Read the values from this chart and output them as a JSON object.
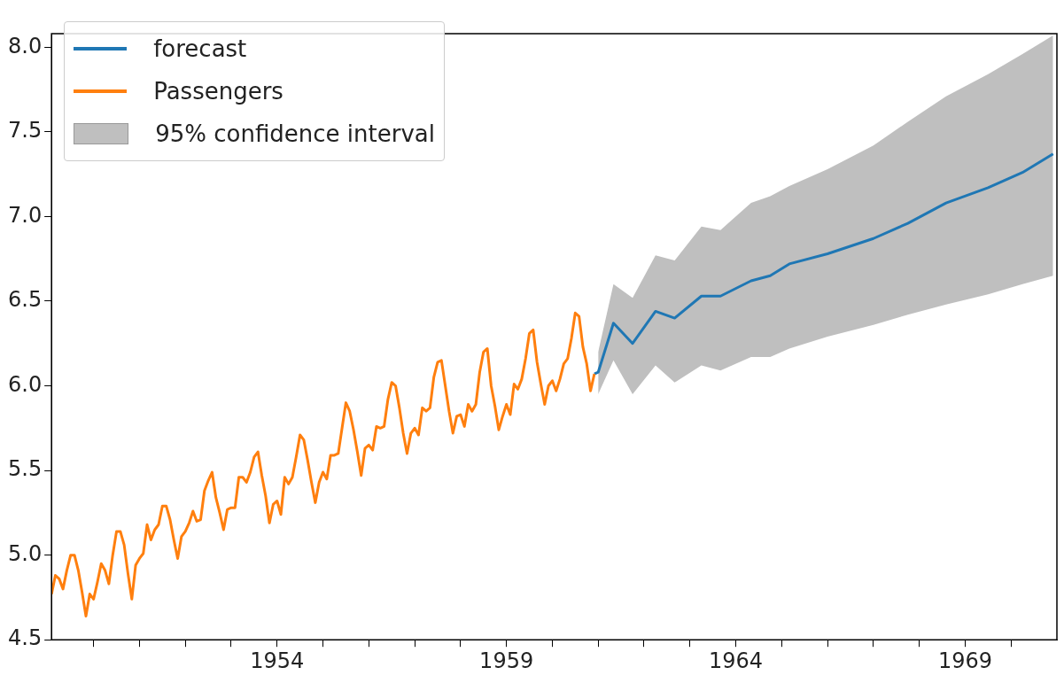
{
  "chart_data": {
    "type": "line",
    "legend": "top left",
    "grid": false,
    "marker": "none",
    "x": [
      "1949-02",
      "1949-03",
      "1949-04",
      "1949-05",
      "1949-06",
      "1949-07",
      "1949-08",
      "1949-09",
      "1949-10",
      "1949-11",
      "1949-12",
      "1950-01",
      "1950-02",
      "1950-03",
      "1950-04",
      "1950-05",
      "1950-06",
      "1950-07",
      "1950-08",
      "1950-09",
      "1950-10",
      "1950-11",
      "1950-12",
      "1951-01",
      "1951-02",
      "1951-03",
      "1951-04",
      "1951-05",
      "1951-06",
      "1951-07",
      "1951-08",
      "1951-09",
      "1951-10",
      "1951-11",
      "1951-12",
      "1952-01",
      "1952-02",
      "1952-03",
      "1952-04",
      "1952-05",
      "1952-06",
      "1952-07",
      "1952-08",
      "1952-09",
      "1952-10",
      "1952-11",
      "1952-12",
      "1953-01",
      "1953-02",
      "1953-03",
      "1953-04",
      "1953-05",
      "1953-06",
      "1953-07",
      "1953-08",
      "1953-09",
      "1953-10",
      "1953-11",
      "1953-12",
      "1954-01",
      "1954-02",
      "1954-03",
      "1954-04",
      "1954-05",
      "1954-06",
      "1954-07",
      "1954-08",
      "1954-09",
      "1954-10",
      "1954-11",
      "1954-12",
      "1955-01",
      "1955-02",
      "1955-03",
      "1955-04",
      "1955-05",
      "1955-06",
      "1955-07",
      "1955-08",
      "1955-09",
      "1955-10",
      "1955-11",
      "1955-12",
      "1956-01",
      "1956-02",
      "1956-03",
      "1956-04",
      "1956-05",
      "1956-06",
      "1956-07",
      "1956-08",
      "1956-09",
      "1956-10",
      "1956-11",
      "1956-12",
      "1957-01",
      "1957-02",
      "1957-03",
      "1957-04",
      "1957-05",
      "1957-06",
      "1957-07",
      "1957-08",
      "1957-09",
      "1957-10",
      "1957-11",
      "1957-12",
      "1958-01",
      "1958-02",
      "1958-03",
      "1958-04",
      "1958-05",
      "1958-06",
      "1958-07",
      "1958-08",
      "1958-09",
      "1958-10",
      "1958-11",
      "1958-12",
      "1959-01",
      "1959-02",
      "1959-03",
      "1959-04",
      "1959-05",
      "1959-06",
      "1959-07",
      "1959-08",
      "1959-09",
      "1959-10",
      "1959-11",
      "1959-12",
      "1960-01",
      "1960-02",
      "1960-03",
      "1960-04",
      "1960-05",
      "1960-06",
      "1960-07",
      "1960-08",
      "1960-09",
      "1960-10",
      "1960-11",
      "1960-12",
      "1961-01",
      "1961-05",
      "1961-10",
      "1962-04",
      "1962-09",
      "1963-04",
      "1963-09",
      "1964-05",
      "1964-10",
      "1965-03",
      "1966-01",
      "1967-01",
      "1967-10",
      "1968-08",
      "1969-07",
      "1970-04",
      "1970-12"
    ],
    "series": [
      {
        "name": "forecast",
        "color": "#1f77b4",
        "values": [
          null,
          null,
          null,
          null,
          null,
          null,
          null,
          null,
          null,
          null,
          null,
          null,
          null,
          null,
          null,
          null,
          null,
          null,
          null,
          null,
          null,
          null,
          null,
          null,
          null,
          null,
          null,
          null,
          null,
          null,
          null,
          null,
          null,
          null,
          null,
          null,
          null,
          null,
          null,
          null,
          null,
          null,
          null,
          null,
          null,
          null,
          null,
          null,
          null,
          null,
          null,
          null,
          null,
          null,
          null,
          null,
          null,
          null,
          null,
          null,
          null,
          null,
          null,
          null,
          null,
          null,
          null,
          null,
          null,
          null,
          null,
          null,
          null,
          null,
          null,
          null,
          null,
          null,
          null,
          null,
          null,
          null,
          null,
          null,
          null,
          null,
          null,
          null,
          null,
          null,
          null,
          null,
          null,
          null,
          null,
          null,
          null,
          null,
          null,
          null,
          null,
          null,
          null,
          null,
          null,
          null,
          null,
          null,
          null,
          null,
          null,
          null,
          null,
          null,
          null,
          null,
          null,
          null,
          null,
          null,
          null,
          null,
          null,
          null,
          null,
          null,
          null,
          null,
          null,
          null,
          null,
          null,
          null,
          null,
          null,
          null,
          null,
          null,
          null,
          null,
          null,
          null,
          6.07,
          6.08,
          6.37,
          6.25,
          6.44,
          6.4,
          6.53,
          6.53,
          6.62,
          6.65,
          6.72,
          6.78,
          6.87,
          6.96,
          7.08,
          7.17,
          7.26,
          7.37
        ],
        "lower": [
          null,
          null,
          null,
          null,
          null,
          null,
          null,
          null,
          null,
          null,
          null,
          null,
          null,
          null,
          null,
          null,
          null,
          null,
          null,
          null,
          null,
          null,
          null,
          null,
          null,
          null,
          null,
          null,
          null,
          null,
          null,
          null,
          null,
          null,
          null,
          null,
          null,
          null,
          null,
          null,
          null,
          null,
          null,
          null,
          null,
          null,
          null,
          null,
          null,
          null,
          null,
          null,
          null,
          null,
          null,
          null,
          null,
          null,
          null,
          null,
          null,
          null,
          null,
          null,
          null,
          null,
          null,
          null,
          null,
          null,
          null,
          null,
          null,
          null,
          null,
          null,
          null,
          null,
          null,
          null,
          null,
          null,
          null,
          null,
          null,
          null,
          null,
          null,
          null,
          null,
          null,
          null,
          null,
          null,
          null,
          null,
          null,
          null,
          null,
          null,
          null,
          null,
          null,
          null,
          null,
          null,
          null,
          null,
          null,
          null,
          null,
          null,
          null,
          null,
          null,
          null,
          null,
          null,
          null,
          null,
          null,
          null,
          null,
          null,
          null,
          null,
          null,
          null,
          null,
          null,
          null,
          null,
          null,
          null,
          null,
          null,
          null,
          null,
          null,
          null,
          null,
          null,
          null,
          5.95,
          6.15,
          5.95,
          6.12,
          6.02,
          6.12,
          6.09,
          6.17,
          6.17,
          6.22,
          6.29,
          6.36,
          6.42,
          6.48,
          6.54,
          6.6,
          6.65
        ],
        "upper": [
          null,
          null,
          null,
          null,
          null,
          null,
          null,
          null,
          null,
          null,
          null,
          null,
          null,
          null,
          null,
          null,
          null,
          null,
          null,
          null,
          null,
          null,
          null,
          null,
          null,
          null,
          null,
          null,
          null,
          null,
          null,
          null,
          null,
          null,
          null,
          null,
          null,
          null,
          null,
          null,
          null,
          null,
          null,
          null,
          null,
          null,
          null,
          null,
          null,
          null,
          null,
          null,
          null,
          null,
          null,
          null,
          null,
          null,
          null,
          null,
          null,
          null,
          null,
          null,
          null,
          null,
          null,
          null,
          null,
          null,
          null,
          null,
          null,
          null,
          null,
          null,
          null,
          null,
          null,
          null,
          null,
          null,
          null,
          null,
          null,
          null,
          null,
          null,
          null,
          null,
          null,
          null,
          null,
          null,
          null,
          null,
          null,
          null,
          null,
          null,
          null,
          null,
          null,
          null,
          null,
          null,
          null,
          null,
          null,
          null,
          null,
          null,
          null,
          null,
          null,
          null,
          null,
          null,
          null,
          null,
          null,
          null,
          null,
          null,
          null,
          null,
          null,
          null,
          null,
          null,
          null,
          null,
          null,
          null,
          null,
          null,
          null,
          null,
          null,
          null,
          null,
          null,
          null,
          6.2,
          6.6,
          6.52,
          6.77,
          6.74,
          6.94,
          6.92,
          7.08,
          7.12,
          7.18,
          7.28,
          7.42,
          7.56,
          7.71,
          7.84,
          7.96,
          8.07
        ]
      },
      {
        "name": "Passengers",
        "color": "#ff7f0e",
        "values": [
          4.77,
          4.88,
          4.86,
          4.8,
          4.91,
          5.0,
          5.0,
          4.91,
          4.78,
          4.64,
          4.77,
          4.74,
          4.84,
          4.95,
          4.91,
          4.83,
          5.0,
          5.14,
          5.14,
          5.06,
          4.89,
          4.74,
          4.94,
          4.98,
          5.01,
          5.18,
          5.09,
          5.15,
          5.18,
          5.29,
          5.29,
          5.21,
          5.09,
          4.98,
          5.11,
          5.14,
          5.19,
          5.26,
          5.2,
          5.21,
          5.38,
          5.44,
          5.49,
          5.34,
          5.25,
          5.15,
          5.27,
          5.28,
          5.28,
          5.46,
          5.46,
          5.43,
          5.49,
          5.58,
          5.61,
          5.47,
          5.35,
          5.19,
          5.3,
          5.32,
          5.24,
          5.46,
          5.42,
          5.46,
          5.58,
          5.71,
          5.68,
          5.56,
          5.43,
          5.31,
          5.43,
          5.49,
          5.45,
          5.59,
          5.59,
          5.6,
          5.75,
          5.9,
          5.85,
          5.74,
          5.61,
          5.47,
          5.63,
          5.65,
          5.62,
          5.76,
          5.75,
          5.76,
          5.92,
          6.02,
          6.0,
          5.87,
          5.72,
          5.6,
          5.72,
          5.75,
          5.71,
          5.87,
          5.85,
          5.87,
          6.05,
          6.14,
          6.15,
          6.0,
          5.85,
          5.72,
          5.82,
          5.83,
          5.76,
          5.89,
          5.85,
          5.89,
          6.08,
          6.2,
          6.22,
          6.0,
          5.88,
          5.74,
          5.82,
          5.89,
          5.83,
          6.01,
          5.98,
          6.04,
          6.16,
          6.31,
          6.33,
          6.14,
          6.01,
          5.89,
          6.0,
          6.03,
          5.97,
          6.04,
          6.13,
          6.16,
          6.28,
          6.43,
          6.41,
          6.23,
          6.13,
          5.97,
          6.07,
          null,
          null,
          null,
          null,
          null,
          null,
          null,
          null,
          null,
          null,
          null,
          null,
          null,
          null,
          null,
          null,
          null
        ]
      }
    ],
    "annotations": [
      "95% confidence interval"
    ],
    "xlim": [
      "1949-02",
      "1971-01"
    ],
    "xticks": [
      {
        "value": "1950",
        "label": null
      },
      {
        "value": "1951",
        "label": null
      },
      {
        "value": "1952",
        "label": null
      },
      {
        "value": "1953",
        "label": null
      },
      {
        "value": "1954",
        "label": "1954"
      },
      {
        "value": "1955",
        "label": null
      },
      {
        "value": "1956",
        "label": null
      },
      {
        "value": "1957",
        "label": null
      },
      {
        "value": "1958",
        "label": null
      },
      {
        "value": "1959",
        "label": "1959"
      },
      {
        "value": "1960",
        "label": null
      },
      {
        "value": "1961",
        "label": null
      },
      {
        "value": "1962",
        "label": null
      },
      {
        "value": "1963",
        "label": null
      },
      {
        "value": "1964",
        "label": "1964"
      },
      {
        "value": "1965",
        "label": null
      },
      {
        "value": "1966",
        "label": null
      },
      {
        "value": "1967",
        "label": null
      },
      {
        "value": "1968",
        "label": null
      },
      {
        "value": "1969",
        "label": "1969"
      },
      {
        "value": "1970",
        "label": null
      }
    ],
    "ylim": [
      4.5,
      8.08
    ],
    "yticks": [
      {
        "value": 4.5,
        "label": "4.5"
      },
      {
        "value": 5,
        "label": "5.0"
      },
      {
        "value": 5.5,
        "label": "5.5"
      },
      {
        "value": 6,
        "label": "6.0"
      },
      {
        "value": 6.5,
        "label": "6.5"
      },
      {
        "value": 7,
        "label": "7.0"
      },
      {
        "value": 7.5,
        "label": "7.5"
      },
      {
        "value": 8,
        "label": "8.0"
      }
    ]
  }
}
